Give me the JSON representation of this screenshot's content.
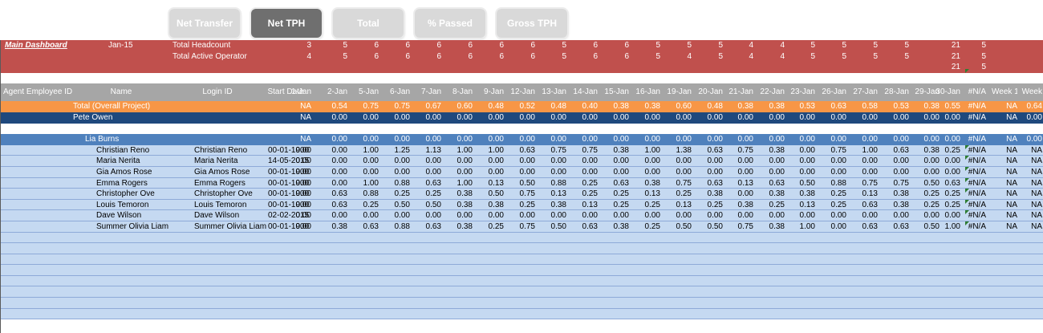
{
  "toolbar": {
    "buttons": [
      {
        "label": "Net Transfer",
        "active": false
      },
      {
        "label": "Net TPH",
        "active": true
      },
      {
        "label": "Total",
        "active": false
      },
      {
        "label": "% Passed",
        "active": false
      },
      {
        "label": "Gross TPH",
        "active": false
      }
    ]
  },
  "header": {
    "link": "Main Dashboard",
    "month": "Jan-15",
    "headcount_label": "Total Headcount",
    "headcount": [
      "3",
      "5",
      "6",
      "6",
      "6",
      "6",
      "6",
      "6",
      "5",
      "6",
      "6",
      "5",
      "5",
      "5",
      "4",
      "4",
      "5",
      "5",
      "5",
      "5",
      "",
      "21",
      "5"
    ],
    "active_label": "Total Active Operator",
    "active": [
      "4",
      "5",
      "6",
      "6",
      "6",
      "6",
      "6",
      "6",
      "5",
      "6",
      "6",
      "5",
      "4",
      "5",
      "4",
      "4",
      "5",
      "5",
      "5",
      "5",
      "",
      "21",
      "5"
    ],
    "third": [
      "",
      "",
      "",
      "",
      "",
      "",
      "",
      "",
      "",
      "",
      "",
      "",
      "",
      "",
      "",
      "",
      "",
      "",
      "",
      "",
      "",
      "21",
      "5"
    ]
  },
  "columns": {
    "agent_id": "Agent Employee ID",
    "name": "Name",
    "login": "Login ID",
    "start": "Start Date",
    "dates": [
      "1-Jan",
      "2-Jan",
      "5-Jan",
      "6-Jan",
      "7-Jan",
      "8-Jan",
      "9-Jan",
      "12-Jan",
      "13-Jan",
      "14-Jan",
      "15-Jan",
      "16-Jan",
      "19-Jan",
      "20-Jan",
      "21-Jan",
      "22-Jan",
      "23-Jan",
      "26-Jan",
      "27-Jan",
      "28-Jan",
      "29-Jan",
      "30-Jan",
      "#N/A",
      "Week 1",
      "Week"
    ]
  },
  "total_row": {
    "label": "Total (Overall Project)",
    "values": [
      "NA",
      "0.54",
      "0.75",
      "0.75",
      "0.67",
      "0.60",
      "0.48",
      "0.52",
      "0.48",
      "0.40",
      "0.38",
      "0.38",
      "0.60",
      "0.48",
      "0.38",
      "0.38",
      "0.53",
      "0.63",
      "0.58",
      "0.53",
      "0.38",
      "0.55",
      "#N/A",
      "NA",
      "0.64"
    ]
  },
  "manager_row": {
    "label": "Pete Owen",
    "values": [
      "NA",
      "0.00",
      "0.00",
      "0.00",
      "0.00",
      "0.00",
      "0.00",
      "0.00",
      "0.00",
      "0.00",
      "0.00",
      "0.00",
      "0.00",
      "0.00",
      "0.00",
      "0.00",
      "0.00",
      "0.00",
      "0.00",
      "0.00",
      "0.00",
      "0.00",
      "#N/A",
      "NA",
      "0.00"
    ]
  },
  "team_row": {
    "label": "Lia Burns",
    "values": [
      "NA",
      "0.00",
      "0.00",
      "0.00",
      "0.00",
      "0.00",
      "0.00",
      "0.00",
      "0.00",
      "0.00",
      "0.00",
      "0.00",
      "0.00",
      "0.00",
      "0.00",
      "0.00",
      "0.00",
      "0.00",
      "0.00",
      "0.00",
      "0.00",
      "0.00",
      "#N/A",
      "NA",
      "0.00"
    ]
  },
  "employees": [
    {
      "name": "Christian Reno",
      "login": "Christian Reno",
      "start": "00-01-1900",
      "values": [
        "0.00",
        "0.00",
        "1.00",
        "1.25",
        "1.13",
        "1.00",
        "1.00",
        "0.63",
        "0.75",
        "0.75",
        "0.38",
        "1.00",
        "1.38",
        "0.63",
        "0.75",
        "0.38",
        "0.00",
        "0.75",
        "1.00",
        "0.63",
        "0.38",
        "0.25",
        "#N/A",
        "NA",
        "NA"
      ]
    },
    {
      "name": "Maria Nerita",
      "login": "Maria Nerita",
      "start": "14-05-2015",
      "values": [
        "0.00",
        "0.00",
        "0.00",
        "0.00",
        "0.00",
        "0.00",
        "0.00",
        "0.00",
        "0.00",
        "0.00",
        "0.00",
        "0.00",
        "0.00",
        "0.00",
        "0.00",
        "0.00",
        "0.00",
        "0.00",
        "0.00",
        "0.00",
        "0.00",
        "0.00",
        "#N/A",
        "NA",
        "NA"
      ]
    },
    {
      "name": "Gia Amos Rose",
      "login": "Gia Amos Rose",
      "start": "00-01-1900",
      "values": [
        "0.00",
        "0.00",
        "0.00",
        "0.00",
        "0.00",
        "0.00",
        "0.00",
        "0.00",
        "0.00",
        "0.00",
        "0.00",
        "0.00",
        "0.00",
        "0.00",
        "0.00",
        "0.00",
        "0.00",
        "0.00",
        "0.00",
        "0.00",
        "0.00",
        "0.00",
        "#N/A",
        "NA",
        "NA"
      ]
    },
    {
      "name": "Emma Rogers",
      "login": "Emma Rogers",
      "start": "00-01-1900",
      "values": [
        "0.00",
        "0.00",
        "1.00",
        "0.88",
        "0.63",
        "1.00",
        "0.13",
        "0.50",
        "0.88",
        "0.25",
        "0.63",
        "0.38",
        "0.75",
        "0.63",
        "0.13",
        "0.63",
        "0.50",
        "0.88",
        "0.75",
        "0.75",
        "0.50",
        "0.63",
        "#N/A",
        "NA",
        "NA"
      ]
    },
    {
      "name": "Christopher Ove",
      "login": "Christopher Ove",
      "start": "00-01-1900",
      "values": [
        "0.00",
        "0.63",
        "0.88",
        "0.25",
        "0.25",
        "0.38",
        "0.50",
        "0.75",
        "0.13",
        "0.25",
        "0.25",
        "0.13",
        "0.25",
        "0.38",
        "0.00",
        "0.38",
        "0.38",
        "0.25",
        "0.13",
        "0.38",
        "0.25",
        "0.25",
        "#N/A",
        "NA",
        "NA"
      ]
    },
    {
      "name": "Louis Temoron",
      "login": "Louis Temoron",
      "start": "00-01-1900",
      "values": [
        "0.00",
        "0.63",
        "0.25",
        "0.50",
        "0.50",
        "0.38",
        "0.38",
        "0.25",
        "0.38",
        "0.13",
        "0.25",
        "0.25",
        "0.13",
        "0.25",
        "0.38",
        "0.25",
        "0.13",
        "0.25",
        "0.63",
        "0.38",
        "0.25",
        "0.25",
        "#N/A",
        "NA",
        "NA"
      ]
    },
    {
      "name": "Dave Wilson",
      "login": "Dave Wilson",
      "start": "02-02-2015",
      "values": [
        "0.00",
        "0.00",
        "0.00",
        "0.00",
        "0.00",
        "0.00",
        "0.00",
        "0.00",
        "0.00",
        "0.00",
        "0.00",
        "0.00",
        "0.00",
        "0.00",
        "0.00",
        "0.00",
        "0.00",
        "0.00",
        "0.00",
        "0.00",
        "0.00",
        "0.00",
        "#N/A",
        "NA",
        "NA"
      ]
    },
    {
      "name": "Summer Olivia Liam",
      "login": "Summer Olivia Liam",
      "start": "00-01-1900",
      "values": [
        "0.00",
        "0.38",
        "0.63",
        "0.88",
        "0.63",
        "0.38",
        "0.25",
        "0.75",
        "0.50",
        "0.63",
        "0.38",
        "0.25",
        "0.50",
        "0.50",
        "0.75",
        "0.38",
        "1.00",
        "0.00",
        "0.63",
        "0.63",
        "0.50",
        "1.00",
        "#N/A",
        "NA",
        "NA"
      ]
    }
  ],
  "empty_rows": 8,
  "colors": {
    "header_red": "#c0504d",
    "total_orange": "#f79646",
    "manager_navy": "#1f497d",
    "team_blue": "#4f81bd",
    "employee_light_blue": "#c5d9f1",
    "column_header_gray": "#a6a6a6"
  }
}
